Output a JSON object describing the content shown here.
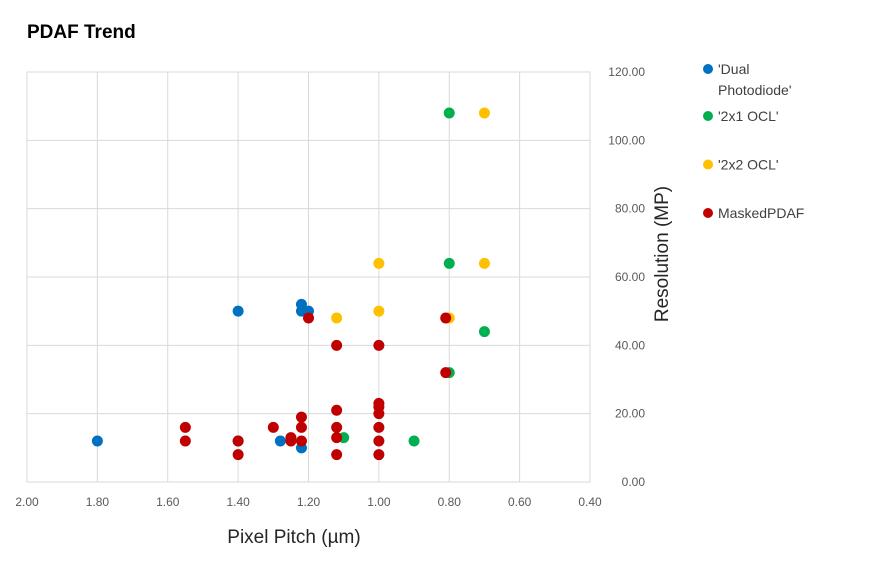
{
  "chart_data": {
    "type": "scatter",
    "title": "PDAF Trend",
    "xlabel": "Pixel Pitch (µm)",
    "ylabel": "Resolution (MP)",
    "xlim": [
      0.4,
      2.0
    ],
    "x_reversed": true,
    "ylim": [
      0,
      120
    ],
    "x_ticks": [
      "2.00",
      "1.80",
      "1.60",
      "1.40",
      "1.20",
      "1.00",
      "0.80",
      "0.60",
      "0.40"
    ],
    "x_tick_values": [
      2.0,
      1.8,
      1.6,
      1.4,
      1.2,
      1.0,
      0.8,
      0.6,
      0.4
    ],
    "y_ticks": [
      "0.00",
      "20.00",
      "40.00",
      "60.00",
      "80.00",
      "100.00",
      "120.00"
    ],
    "y_tick_values": [
      0,
      20,
      40,
      60,
      80,
      100,
      120
    ],
    "y_axis_position": "right",
    "grid": true,
    "legend_position": "right",
    "series": [
      {
        "name": "'Dual Photodiode'",
        "legend_lines": [
          "'Dual",
          "Photodiode'"
        ],
        "color": "#0070c0",
        "points": [
          [
            1.8,
            12
          ],
          [
            1.4,
            50
          ],
          [
            1.4,
            12
          ],
          [
            1.28,
            12
          ],
          [
            1.22,
            52
          ],
          [
            1.22,
            50
          ],
          [
            1.2,
            50
          ],
          [
            1.22,
            10
          ]
        ]
      },
      {
        "name": "'2x1 OCL'",
        "legend_lines": [
          "'2x1 OCL'"
        ],
        "color": "#00b050",
        "points": [
          [
            0.8,
            108
          ],
          [
            0.8,
            64
          ],
          [
            0.7,
            44
          ],
          [
            0.8,
            32
          ],
          [
            1.1,
            13
          ],
          [
            0.9,
            12
          ]
        ]
      },
      {
        "name": "'2x2 OCL'",
        "legend_lines": [
          "'2x2 OCL'"
        ],
        "color": "#ffc000",
        "points": [
          [
            0.7,
            108
          ],
          [
            1.0,
            64
          ],
          [
            0.7,
            64
          ],
          [
            1.0,
            50
          ],
          [
            1.12,
            48
          ],
          [
            0.8,
            48
          ]
        ]
      },
      {
        "name": "MaskedPDAF",
        "legend_lines": [
          "MaskedPDAF"
        ],
        "color": "#c00000",
        "points": [
          [
            1.2,
            48
          ],
          [
            0.81,
            48
          ],
          [
            1.12,
            40
          ],
          [
            1.0,
            40
          ],
          [
            0.81,
            32
          ],
          [
            1.0,
            23
          ],
          [
            1.0,
            22
          ],
          [
            1.12,
            21
          ],
          [
            1.0,
            20
          ],
          [
            1.22,
            19
          ],
          [
            1.55,
            16
          ],
          [
            1.3,
            16
          ],
          [
            1.22,
            16
          ],
          [
            1.12,
            16
          ],
          [
            1.0,
            16
          ],
          [
            1.25,
            13
          ],
          [
            1.12,
            13
          ],
          [
            1.55,
            12
          ],
          [
            1.4,
            12
          ],
          [
            1.25,
            12
          ],
          [
            1.22,
            12
          ],
          [
            1.0,
            12
          ],
          [
            1.4,
            8
          ],
          [
            1.12,
            8
          ],
          [
            1.0,
            8
          ]
        ]
      }
    ]
  }
}
